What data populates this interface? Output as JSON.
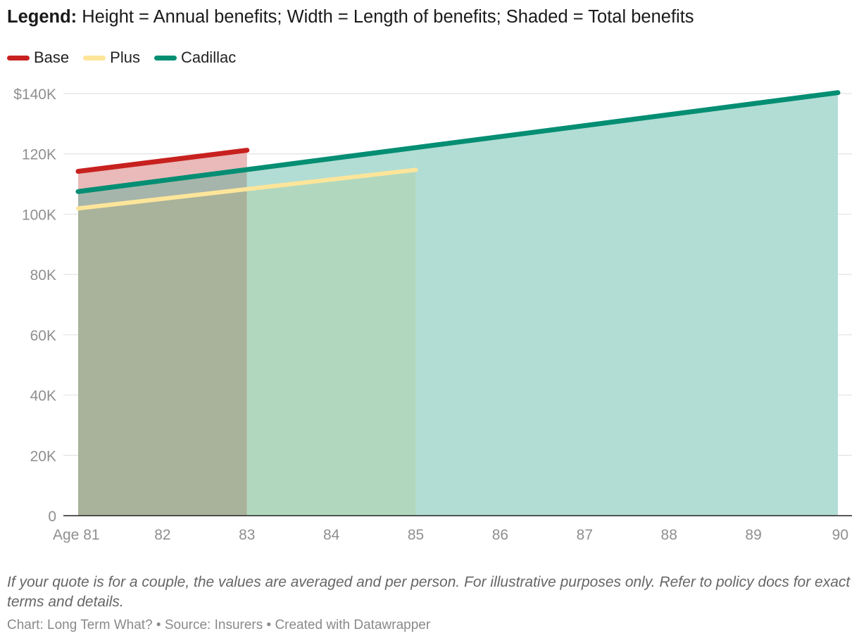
{
  "header": {
    "legend_word": "Legend:",
    "legend_text": "Height = Annual benefits; Width = Length of benefits; Shaded = Total benefits"
  },
  "chart_data": {
    "type": "line",
    "x_tick_labels": [
      "Age 81",
      "82",
      "83",
      "84",
      "85",
      "86",
      "87",
      "88",
      "89",
      "90"
    ],
    "x_ticks": [
      81,
      82,
      83,
      84,
      85,
      86,
      87,
      88,
      89,
      90
    ],
    "xlim": [
      81,
      90
    ],
    "y_ticks": [
      0,
      20000,
      40000,
      60000,
      80000,
      100000,
      120000,
      140000
    ],
    "y_tick_labels": [
      "0",
      "20K",
      "40K",
      "60K",
      "80K",
      "100K",
      "120K",
      "$140K"
    ],
    "ylim": [
      0,
      140000
    ],
    "grid": true,
    "shaded_area": true,
    "legend_placement": "top-left",
    "series": [
      {
        "name": "Base",
        "color": "#c7211f",
        "fill": "#eab9b9",
        "x": [
          81,
          83
        ],
        "y": [
          114200,
          121200
        ]
      },
      {
        "name": "Plus",
        "color": "#fde59a",
        "fill": "#b1d8bf",
        "x": [
          81,
          85
        ],
        "y": [
          101900,
          114700
        ]
      },
      {
        "name": "Cadillac",
        "color": "#048e73",
        "fill": "#b2ddd4",
        "x": [
          81,
          90
        ],
        "y": [
          107500,
          140300
        ]
      }
    ],
    "overlap_fill": "#a9b39b",
    "axis_color": "#222222",
    "grid_color": "#e3e3e3",
    "tick_label_color": "#8f8f8f"
  },
  "footer": {
    "note": "If your quote is for a couple, the values are averaged and per person. For illustrative purposes only. Refer to policy docs for exact terms and details.",
    "credit": "Chart: Long Term What? • Source: Insurers • Created with Datawrapper"
  }
}
